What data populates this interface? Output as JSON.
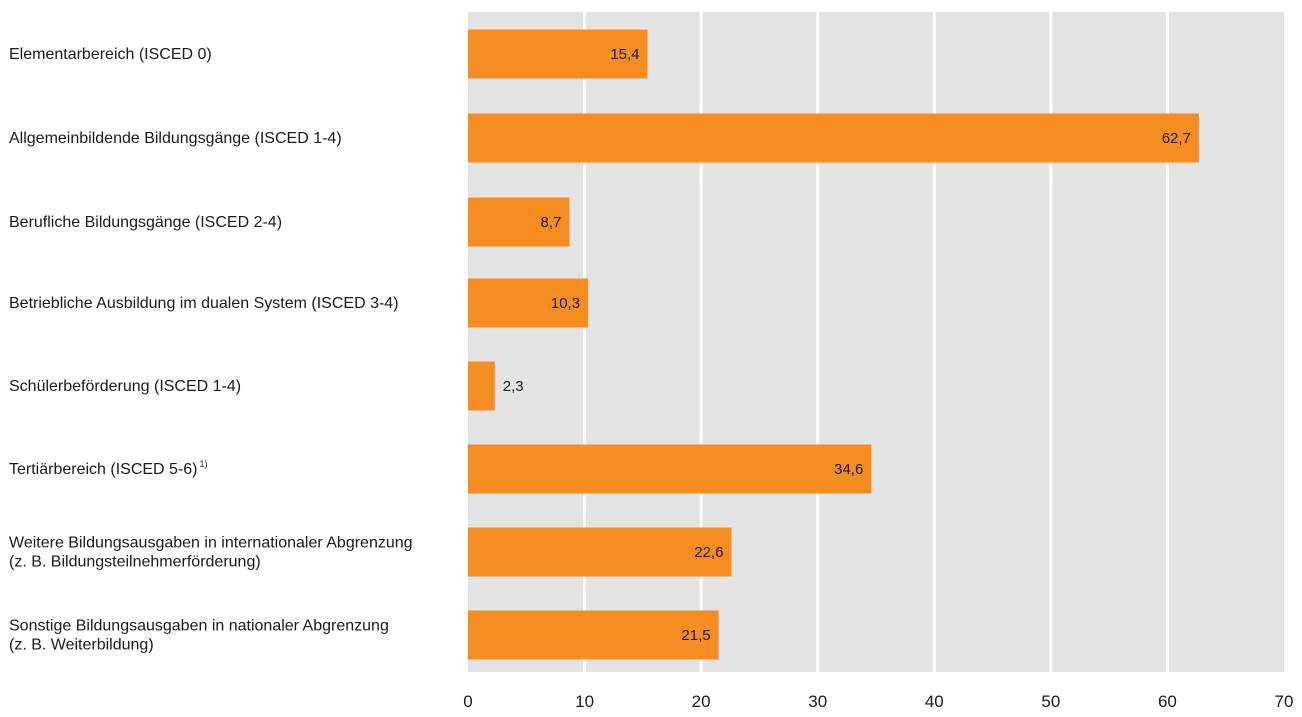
{
  "chart_data": {
    "type": "bar",
    "orientation": "horizontal",
    "categories": [
      [
        "Elementarbereich (ISCED 0)"
      ],
      [
        "Allgemeinbildende Bildungsgänge (ISCED 1-4)"
      ],
      [
        "Berufliche Bildungsgänge (ISCED 2-4)"
      ],
      [
        "Betriebliche Ausbildung im dualen System (ISCED 3-4)"
      ],
      [
        "Schülerbeförderung (ISCED 1-4)"
      ],
      [
        "Tertiärbereich (ISCED 5-6)"
      ],
      [
        "Weitere Bildungsausgaben in internationaler Abgrenzung",
        "(z. B. Bildungsteilnehmerförderung)"
      ],
      [
        "Sonstige Bildungsausgaben in nationaler Abgrenzung",
        "(z. B. Weiterbildung)"
      ]
    ],
    "footnote_marks": [
      "",
      "",
      "",
      "",
      "",
      "1)",
      "",
      ""
    ],
    "values": [
      15.4,
      62.7,
      8.7,
      10.3,
      2.3,
      34.6,
      22.6,
      21.5
    ],
    "value_labels": [
      "15,4",
      "62,7",
      "8,7",
      "10,3",
      "2,3",
      "34,6",
      "22,6",
      "21,5"
    ],
    "xlim": [
      0,
      70
    ],
    "xticks": [
      0,
      10,
      20,
      30,
      40,
      50,
      60,
      70
    ],
    "xtick_labels": [
      "0",
      "10",
      "20",
      "30",
      "40",
      "50",
      "60",
      "70"
    ],
    "grid": true,
    "legend": "none",
    "title": "",
    "xlabel": "",
    "ylabel": ""
  },
  "colors": {
    "bar": "#f68d23",
    "plot_background": "#e3e3e4",
    "gridline": "#ffffff",
    "text": "#1a1a1a"
  }
}
